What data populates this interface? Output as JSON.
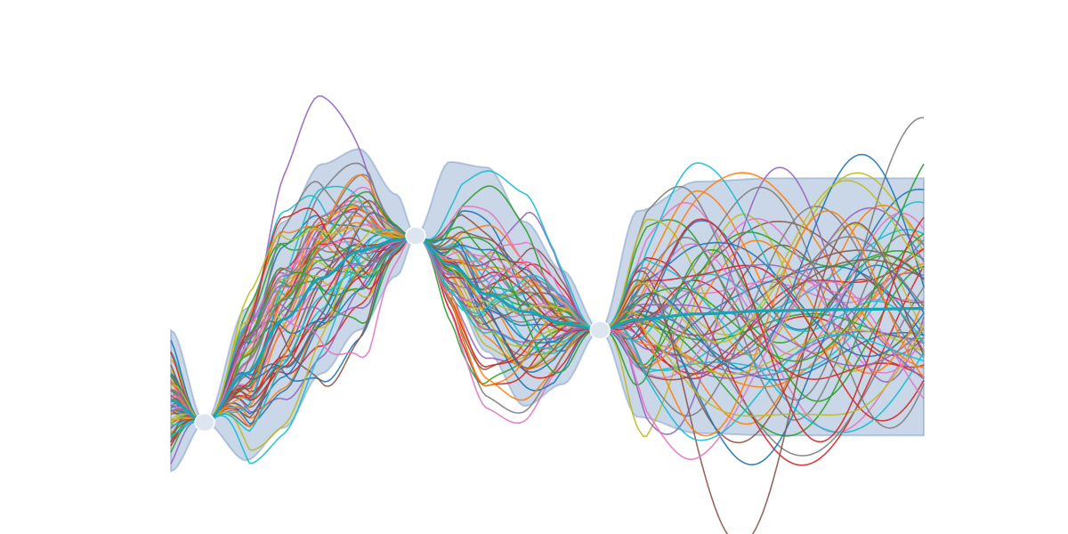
{
  "chart_data": {
    "type": "line",
    "title": "",
    "xlabel": "",
    "ylabel": "",
    "xlim": [
      0.0,
      1.0
    ],
    "ylim": [
      -1.7,
      2.4
    ],
    "axes_visible": false,
    "grid": false,
    "legend": "none",
    "observations": [
      {
        "x": 0.045,
        "y": -1.0
      },
      {
        "x": 0.325,
        "y": 0.72
      },
      {
        "x": 0.57,
        "y": -0.15
      }
    ],
    "mean": {
      "x": [
        0.0,
        0.045,
        0.1,
        0.15,
        0.2,
        0.25,
        0.3,
        0.325,
        0.37,
        0.42,
        0.47,
        0.52,
        0.57,
        0.62,
        0.7,
        0.8,
        0.9,
        1.0
      ],
      "y": [
        -0.8,
        -1.0,
        -0.55,
        -0.05,
        0.33,
        0.58,
        0.68,
        0.72,
        0.45,
        0.18,
        0.02,
        -0.08,
        -0.15,
        -0.05,
        0.0,
        0.03,
        0.04,
        0.05
      ]
    },
    "band": {
      "x": [
        0.0,
        0.045,
        0.1,
        0.15,
        0.2,
        0.25,
        0.3,
        0.325,
        0.37,
        0.42,
        0.47,
        0.52,
        0.57,
        0.62,
        0.7,
        0.8,
        0.9,
        1.0
      ],
      "lower": [
        -1.45,
        -1.0,
        -1.35,
        -1.05,
        -0.55,
        -0.15,
        0.35,
        0.72,
        0.25,
        -0.35,
        -0.85,
        -0.65,
        -0.15,
        -0.95,
        -1.1,
        -1.12,
        -1.12,
        -1.12
      ],
      "upper": [
        -0.15,
        -1.0,
        0.05,
        0.85,
        1.38,
        1.52,
        1.1,
        0.72,
        1.4,
        1.35,
        0.85,
        0.4,
        -0.15,
        0.95,
        1.22,
        1.25,
        1.25,
        1.25
      ]
    },
    "sample_count": 60,
    "colors": {
      "band": "#4f7cb3",
      "mean": "#17a2b8",
      "observation": "#dde5f0",
      "samples": [
        "#1f77b4",
        "#ff7f0e",
        "#2ca02c",
        "#d62728",
        "#9467bd",
        "#8c564b",
        "#e377c2",
        "#7f7f7f",
        "#bcbd22",
        "#17becf"
      ]
    }
  }
}
